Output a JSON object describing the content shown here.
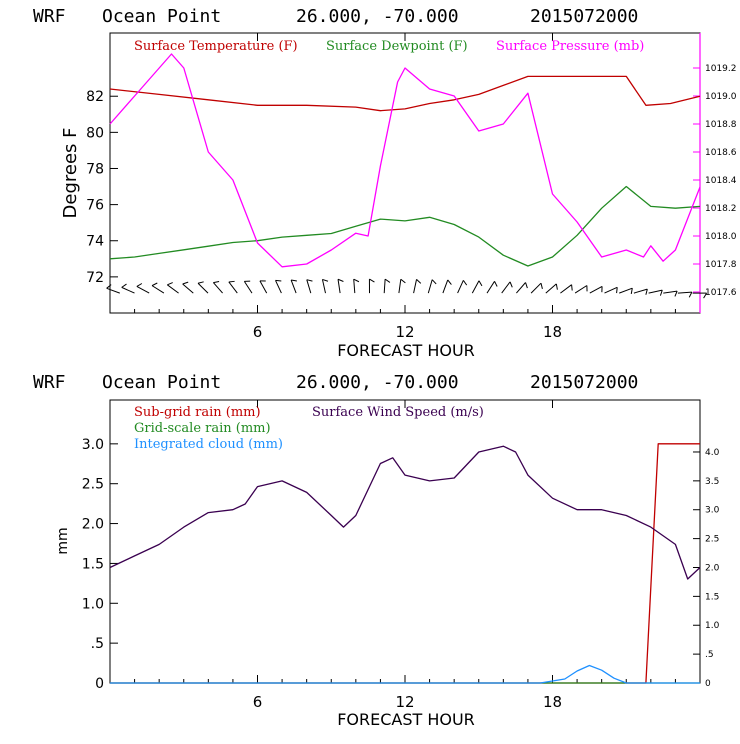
{
  "chart_data": [
    {
      "type": "line",
      "header": {
        "model": "WRF",
        "location": "Ocean Point",
        "coords": "26.000, -70.000",
        "date": "2015072000"
      },
      "xlabel": "FORECAST HOUR",
      "ylabel": "Degrees F",
      "xlim": [
        0,
        24
      ],
      "ylim": [
        70,
        85.5
      ],
      "xticks": [
        6,
        12,
        18
      ],
      "yticks": [
        72,
        74,
        76,
        78,
        80,
        82
      ],
      "y2lim": [
        1017.45,
        1019.45
      ],
      "y2ticks": [
        "1017.6",
        "1017.8",
        "1018.0",
        "1018.2",
        "1018.4",
        "1018.6",
        "1018.8",
        "1019.0",
        "1019.2"
      ],
      "legend": [
        "Surface Temperature (F)",
        "Surface Dewpoint (F)",
        "Surface Pressure (mb)"
      ],
      "colors": {
        "temperature": "#c00000",
        "dewpoint": "#228b22",
        "pressure": "#ff00ff",
        "barbs": "#000000"
      },
      "series": [
        {
          "name": "Surface Temperature (F)",
          "color": "#c00000",
          "axis": "left",
          "x": [
            0,
            2,
            4,
            6,
            8,
            10,
            11,
            12,
            13,
            14,
            15,
            16,
            17,
            18,
            20,
            21,
            21.8,
            22.8,
            24
          ],
          "y": [
            82.4,
            82.1,
            81.8,
            81.5,
            81.5,
            81.4,
            81.2,
            81.3,
            81.6,
            81.8,
            82.1,
            82.6,
            83.1,
            83.1,
            83.1,
            83.1,
            81.5,
            81.6,
            82.0
          ]
        },
        {
          "name": "Surface Dewpoint (F)",
          "color": "#228b22",
          "axis": "left",
          "x": [
            0,
            1,
            2,
            3,
            4,
            5,
            6,
            7,
            8,
            9,
            10,
            11,
            12,
            13,
            14,
            15,
            16,
            17,
            18,
            19,
            20,
            21,
            22,
            23,
            24
          ],
          "y": [
            73.0,
            73.1,
            73.3,
            73.5,
            73.7,
            73.9,
            74.0,
            74.2,
            74.3,
            74.4,
            74.8,
            75.2,
            75.1,
            75.3,
            74.9,
            74.2,
            73.2,
            72.6,
            73.1,
            74.3,
            75.8,
            77.0,
            75.9,
            75.8,
            75.9
          ]
        },
        {
          "name": "Surface Pressure (mb)",
          "color": "#ff00ff",
          "axis": "right",
          "x": [
            0,
            1,
            2,
            2.5,
            3,
            4,
            5,
            6,
            7,
            8,
            9,
            10,
            10.5,
            11,
            11.7,
            12,
            13,
            14,
            15,
            16,
            17,
            18,
            19,
            20,
            21,
            21.7,
            22,
            22.5,
            23,
            24
          ],
          "y": [
            1018.8,
            1019.0,
            1019.2,
            1019.3,
            1019.2,
            1018.6,
            1018.4,
            1017.95,
            1017.78,
            1017.8,
            1017.9,
            1018.02,
            1018.0,
            1018.5,
            1019.1,
            1019.2,
            1019.05,
            1019.0,
            1018.75,
            1018.8,
            1019.02,
            1018.3,
            1018.1,
            1017.85,
            1017.9,
            1017.85,
            1017.93,
            1017.82,
            1017.9,
            1018.35
          ]
        }
      ],
      "wind_barbs": {
        "count": 40,
        "x_start": 0.4,
        "x_end": 23.7,
        "y": 71.1
      }
    },
    {
      "type": "line",
      "header": {
        "model": "WRF",
        "location": "Ocean Point",
        "coords": "26.000, -70.000",
        "date": "2015072000"
      },
      "xlabel": "FORECAST HOUR",
      "ylabel": "mm",
      "xlim": [
        0,
        24
      ],
      "ylim": [
        0,
        3.55
      ],
      "xticks": [
        6,
        12,
        18
      ],
      "yticks": [
        "0",
        ".5",
        "1.0",
        "1.5",
        "2.0",
        "2.5",
        "3.0"
      ],
      "yticks_values": [
        0,
        0.5,
        1.0,
        1.5,
        2.0,
        2.5,
        3.0
      ],
      "y2lim": [
        0,
        4.9
      ],
      "y2ticks": [
        "0",
        ".5",
        "1.0",
        "1.5",
        "2.0",
        "2.5",
        "3.0",
        "3.5",
        "4.0"
      ],
      "y2ticks_values": [
        0,
        0.5,
        1.0,
        1.5,
        2.0,
        2.5,
        3.0,
        3.5,
        4.0
      ],
      "legend": [
        "Sub-grid rain (mm)",
        "Grid-scale rain (mm)",
        "Integrated cloud (mm)",
        "Surface Wind Speed (m/s)"
      ],
      "colors": {
        "subgrid": "#c00000",
        "gridscale": "#228b22",
        "cloud": "#1e90ff",
        "wind": "#3a0050"
      },
      "series": [
        {
          "name": "Sub-grid rain (mm)",
          "color": "#c00000",
          "axis": "left",
          "x": [
            0,
            21.8,
            22.3,
            24
          ],
          "y": [
            0,
            0,
            3.0,
            3.0
          ]
        },
        {
          "name": "Grid-scale rain (mm)",
          "color": "#228b22",
          "axis": "left",
          "x": [
            0,
            24
          ],
          "y": [
            0,
            0
          ]
        },
        {
          "name": "Integrated cloud (mm)",
          "color": "#1e90ff",
          "axis": "left",
          "x": [
            0,
            17.5,
            18.5,
            19,
            19.5,
            20,
            20.5,
            21,
            24
          ],
          "y": [
            0,
            0,
            0.05,
            0.15,
            0.22,
            0.16,
            0.06,
            0,
            0
          ]
        },
        {
          "name": "Surface Wind Speed (m/s)",
          "color": "#3a0050",
          "axis": "right",
          "x": [
            0,
            1,
            2,
            3,
            4,
            5,
            5.5,
            6,
            7,
            8,
            9,
            9.5,
            10,
            11,
            11.5,
            12,
            13,
            14,
            15,
            16,
            16.5,
            17,
            18,
            19,
            20,
            21,
            22,
            23,
            23.5,
            24
          ],
          "y": [
            2.0,
            2.2,
            2.4,
            2.7,
            2.95,
            3.0,
            3.1,
            3.4,
            3.5,
            3.3,
            2.9,
            2.7,
            2.9,
            3.8,
            3.9,
            3.6,
            3.5,
            3.55,
            4.0,
            4.1,
            4.0,
            3.6,
            3.2,
            3.0,
            3.0,
            2.9,
            2.7,
            2.4,
            1.8,
            2.0
          ]
        }
      ]
    }
  ]
}
